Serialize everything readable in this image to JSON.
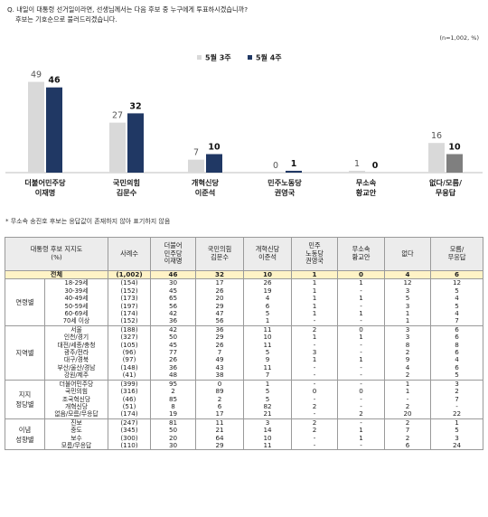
{
  "question": {
    "line1": "Q. 내일이 대통령 선거일이라면, 선생님께서는 다음 후보 중 누구에게 투표하시겠습니까?",
    "line2": "후보는 기호순으로 불러드리겠습니다."
  },
  "sample_note": "(n=1,002, %)",
  "footnote": "* 무소속 송진호 후보는 응답값이 존재하지 않아 표기하지 않음",
  "colors": {
    "series1": "#d9d9d9",
    "series2": "#203864",
    "series3": "#7f7f7f"
  },
  "chart_data": {
    "type": "bar",
    "categories": [
      "더불어민주당\n이재명",
      "국민의힘\n김문수",
      "개혁신당\n이준석",
      "민주노동당\n권영국",
      "무소속\n황교안",
      "없다/모름/\n무응답"
    ],
    "series": [
      {
        "name": "5월 3주",
        "values": [
          49,
          27,
          7,
          0,
          1,
          16
        ]
      },
      {
        "name": "5월 4주",
        "values": [
          46,
          32,
          10,
          1,
          0,
          10
        ]
      }
    ],
    "ylim": [
      0,
      55
    ],
    "legend": "top-center",
    "grid": false
  },
  "table": {
    "header": [
      "대통령 후보 지지도\n(%)",
      "사례수",
      "더불어\n민주당\n이재명",
      "국민의힘\n김문수",
      "개혁신당\n이준석",
      "민주\n노동당\n권영국",
      "무소속\n황교안",
      "없다",
      "모름/\n무응답"
    ],
    "total": {
      "label": "전체",
      "n": "(1,002)",
      "values": [
        "46",
        "32",
        "10",
        "1",
        "0",
        "4",
        "6"
      ]
    },
    "groups": [
      {
        "name": "연령별",
        "rows": [
          {
            "label": "18-29세",
            "n": "(154)",
            "values": [
              "30",
              "17",
              "26",
              "1",
              "1",
              "12",
              "12"
            ]
          },
          {
            "label": "30-39세",
            "n": "(152)",
            "values": [
              "45",
              "26",
              "19",
              "1",
              "-",
              "3",
              "5"
            ]
          },
          {
            "label": "40-49세",
            "n": "(173)",
            "values": [
              "65",
              "20",
              "4",
              "1",
              "1",
              "5",
              "4"
            ]
          },
          {
            "label": "50-59세",
            "n": "(197)",
            "values": [
              "56",
              "29",
              "6",
              "1",
              "-",
              "3",
              "5"
            ]
          },
          {
            "label": "60-69세",
            "n": "(174)",
            "values": [
              "42",
              "47",
              "5",
              "1",
              "1",
              "1",
              "4"
            ]
          },
          {
            "label": "70세 이상",
            "n": "(152)",
            "values": [
              "36",
              "56",
              "1",
              "-",
              "-",
              "1",
              "7"
            ]
          }
        ]
      },
      {
        "name": "지역별",
        "rows": [
          {
            "label": "서울",
            "n": "(188)",
            "values": [
              "42",
              "36",
              "11",
              "2",
              "0",
              "3",
              "6"
            ]
          },
          {
            "label": "인천/경기",
            "n": "(327)",
            "values": [
              "50",
              "29",
              "10",
              "1",
              "1",
              "3",
              "6"
            ]
          },
          {
            "label": "대전/세종/충청",
            "n": "(105)",
            "values": [
              "45",
              "26",
              "11",
              "-",
              "-",
              "8",
              "8"
            ]
          },
          {
            "label": "광주/전라",
            "n": "(96)",
            "values": [
              "77",
              "7",
              "5",
              "3",
              "-",
              "2",
              "6"
            ]
          },
          {
            "label": "대구/경북",
            "n": "(97)",
            "values": [
              "26",
              "49",
              "9",
              "1",
              "1",
              "9",
              "4"
            ]
          },
          {
            "label": "부산/울산/경남",
            "n": "(148)",
            "values": [
              "36",
              "43",
              "11",
              "-",
              "-",
              "4",
              "6"
            ]
          },
          {
            "label": "강원/제주",
            "n": "(41)",
            "values": [
              "48",
              "38",
              "7",
              "-",
              "-",
              "2",
              "5"
            ]
          }
        ]
      },
      {
        "name": "지지\n정당별",
        "rows": [
          {
            "label": "더불어민주당",
            "n": "(399)",
            "values": [
              "95",
              "0",
              "1",
              "-",
              "-",
              "1",
              "3"
            ]
          },
          {
            "label": "국민의힘",
            "n": "(316)",
            "values": [
              "2",
              "89",
              "5",
              "0",
              "0",
              "1",
              "2"
            ]
          },
          {
            "label": "조국혁신당",
            "n": "(46)",
            "values": [
              "85",
              "2",
              "5",
              "-",
              "-",
              "-",
              "7"
            ]
          },
          {
            "label": "개혁신당",
            "n": "(51)",
            "values": [
              "8",
              "6",
              "82",
              "2",
              "-",
              "2",
              "-"
            ]
          },
          {
            "label": "없음/모름/무응답",
            "n": "(174)",
            "values": [
              "19",
              "17",
              "21",
              "-",
              "2",
              "20",
              "22"
            ]
          }
        ]
      },
      {
        "name": "이념\n성향별",
        "rows": [
          {
            "label": "진보",
            "n": "(247)",
            "values": [
              "81",
              "11",
              "3",
              "2",
              "-",
              "2",
              "1"
            ]
          },
          {
            "label": "중도",
            "n": "(345)",
            "values": [
              "50",
              "21",
              "14",
              "2",
              "1",
              "7",
              "5"
            ]
          },
          {
            "label": "보수",
            "n": "(300)",
            "values": [
              "20",
              "64",
              "10",
              "-",
              "1",
              "2",
              "3"
            ]
          },
          {
            "label": "모름/무응답",
            "n": "(110)",
            "values": [
              "30",
              "29",
              "11",
              "-",
              "-",
              "6",
              "24"
            ]
          }
        ]
      }
    ]
  }
}
